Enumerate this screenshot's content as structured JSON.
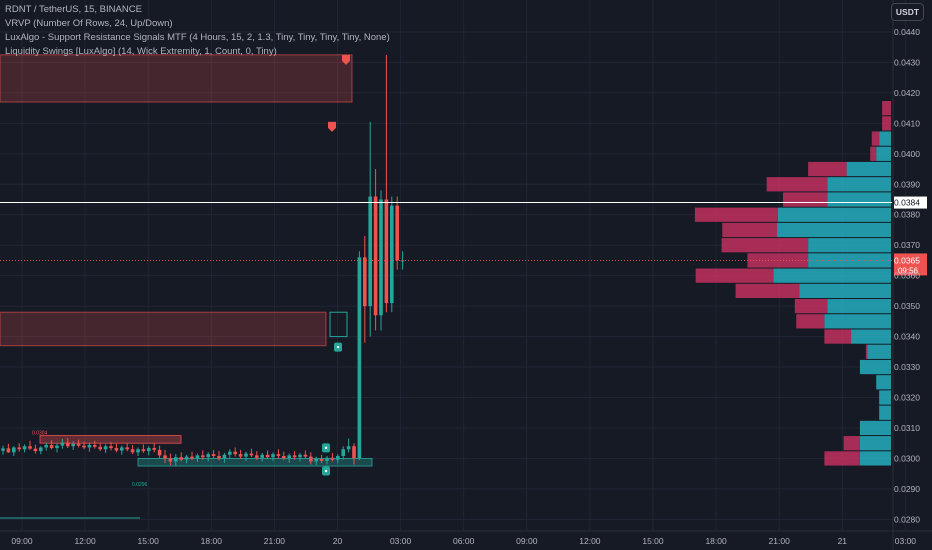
{
  "header": {
    "symbol_line": "RDNT / TetherUS, 15, BINANCE",
    "indicators": [
      "VRVP (Number Of Rows, 24, Up/Down)",
      "LuxAlgo - Support Resistance Signals MTF (4 Hours, 15, 2, 1.3, Tiny, Tiny, Tiny, Tiny, None)",
      "Liquidity Swings [LuxAlgo] (14, Wick Extremity, 1, Count, 0, Tiny)"
    ],
    "currency": "USDT"
  },
  "colors": {
    "background": "#161a25",
    "up": "#26a69a",
    "down": "#ef5350",
    "vp_up": "#24aebf",
    "vp_down": "#c2315f",
    "resistance_zone": "#ef5350",
    "support_zone": "#ef5350",
    "grid": "#222634"
  },
  "chart_data": {
    "type": "candlestick",
    "y_ticks": [
      "0.0280",
      "0.0290",
      "0.0300",
      "0.0310",
      "0.0320",
      "0.0330",
      "0.0340",
      "0.0350",
      "0.0360",
      "0.0370",
      "0.0380",
      "0.0390",
      "0.0400",
      "0.0410",
      "0.0420",
      "0.0430",
      "0.0440"
    ],
    "ylim": [
      0.02765,
      0.04505
    ],
    "x_ticks": [
      "09:00",
      "12:00",
      "15:00",
      "18:00",
      "21:00",
      "20",
      "03:00",
      "06:00",
      "09:00",
      "12:00",
      "15:00",
      "18:00",
      "21:00",
      "21",
      "03:00"
    ],
    "current_price": "0.0365",
    "countdown": "09:56",
    "crosshair_price": "0.0384",
    "zones": [
      {
        "kind": "resistance",
        "top": 0.04325,
        "bottom": 0.0417
      },
      {
        "kind": "resistance",
        "top": 0.0348,
        "bottom": 0.0337
      }
    ],
    "liquidity_labels": [
      {
        "text": "0.0304",
        "price": 0.03052
      },
      {
        "text": "0.0296",
        "price": 0.02968
      }
    ],
    "liquidity_zones": [
      {
        "kind": "high",
        "top": 0.03075,
        "bottom": 0.0305
      },
      {
        "kind": "low",
        "top": 0.03,
        "bottom": 0.02975
      }
    ],
    "signal_markers": [
      {
        "type": "resistance",
        "price": 0.04325
      },
      {
        "type": "resistance",
        "price": 0.04105
      },
      {
        "type": "support",
        "price": 0.034
      },
      {
        "type": "support-up",
        "price": 0.0301
      },
      {
        "type": "support",
        "price": 0.0298
      }
    ],
    "volume_profile": [
      {
        "price": 0.03,
        "up": 42,
        "down": 48
      },
      {
        "price": 0.0305,
        "up": 42,
        "down": 22
      },
      {
        "price": 0.031,
        "up": 42,
        "down": 0
      },
      {
        "price": 0.0315,
        "up": 16,
        "down": 0
      },
      {
        "price": 0.032,
        "up": 16,
        "down": 0
      },
      {
        "price": 0.0325,
        "up": 20,
        "down": 0
      },
      {
        "price": 0.033,
        "up": 42,
        "down": 0
      },
      {
        "price": 0.0335,
        "up": 32,
        "down": 2
      },
      {
        "price": 0.034,
        "up": 54,
        "down": 36
      },
      {
        "price": 0.0345,
        "up": 90,
        "down": 38
      },
      {
        "price": 0.035,
        "up": 86,
        "down": 44
      },
      {
        "price": 0.0355,
        "up": 124,
        "down": 86
      },
      {
        "price": 0.036,
        "up": 159,
        "down": 105
      },
      {
        "price": 0.0365,
        "up": 112,
        "down": 82
      },
      {
        "price": 0.037,
        "up": 112,
        "down": 117
      },
      {
        "price": 0.0375,
        "up": 154,
        "down": 74
      },
      {
        "price": 0.038,
        "up": 153,
        "down": 112
      },
      {
        "price": 0.0385,
        "up": 86,
        "down": 60
      },
      {
        "price": 0.039,
        "up": 86,
        "down": 82
      },
      {
        "price": 0.0395,
        "up": 60,
        "down": 52
      },
      {
        "price": 0.04,
        "up": 20,
        "down": 8
      },
      {
        "price": 0.0405,
        "up": 16,
        "down": 10
      },
      {
        "price": 0.041,
        "up": 0,
        "down": 12
      },
      {
        "price": 0.0415,
        "up": 0,
        "down": 12
      }
    ],
    "candles": [
      {
        "o": 0.03025,
        "h": 0.03042,
        "l": 0.03012,
        "c": 0.03033
      },
      {
        "o": 0.03033,
        "h": 0.03048,
        "l": 0.03018,
        "c": 0.0302
      },
      {
        "o": 0.0302,
        "h": 0.0304,
        "l": 0.03008,
        "c": 0.03036
      },
      {
        "o": 0.03036,
        "h": 0.0305,
        "l": 0.03022,
        "c": 0.0303
      },
      {
        "o": 0.0303,
        "h": 0.03046,
        "l": 0.0302,
        "c": 0.0304
      },
      {
        "o": 0.0304,
        "h": 0.03058,
        "l": 0.03028,
        "c": 0.03032
      },
      {
        "o": 0.03032,
        "h": 0.03045,
        "l": 0.03016,
        "c": 0.03024
      },
      {
        "o": 0.03024,
        "h": 0.0304,
        "l": 0.03014,
        "c": 0.03036
      },
      {
        "o": 0.03036,
        "h": 0.03052,
        "l": 0.03026,
        "c": 0.03044
      },
      {
        "o": 0.03044,
        "h": 0.0306,
        "l": 0.0303,
        "c": 0.03034
      },
      {
        "o": 0.03034,
        "h": 0.03048,
        "l": 0.0302,
        "c": 0.03042
      },
      {
        "o": 0.03042,
        "h": 0.03064,
        "l": 0.03032,
        "c": 0.03052
      },
      {
        "o": 0.03052,
        "h": 0.03066,
        "l": 0.03034,
        "c": 0.0304
      },
      {
        "o": 0.0304,
        "h": 0.03056,
        "l": 0.03028,
        "c": 0.03048
      },
      {
        "o": 0.03048,
        "h": 0.03062,
        "l": 0.03036,
        "c": 0.03042
      },
      {
        "o": 0.03042,
        "h": 0.03055,
        "l": 0.0303,
        "c": 0.03036
      },
      {
        "o": 0.03036,
        "h": 0.0305,
        "l": 0.03022,
        "c": 0.03044
      },
      {
        "o": 0.03044,
        "h": 0.03058,
        "l": 0.03032,
        "c": 0.03038
      },
      {
        "o": 0.03038,
        "h": 0.0305,
        "l": 0.03024,
        "c": 0.0303
      },
      {
        "o": 0.0303,
        "h": 0.03046,
        "l": 0.03018,
        "c": 0.0304
      },
      {
        "o": 0.0304,
        "h": 0.03054,
        "l": 0.03026,
        "c": 0.03034
      },
      {
        "o": 0.03034,
        "h": 0.03048,
        "l": 0.0302,
        "c": 0.03026
      },
      {
        "o": 0.03026,
        "h": 0.03042,
        "l": 0.03012,
        "c": 0.03036
      },
      {
        "o": 0.03036,
        "h": 0.0305,
        "l": 0.03024,
        "c": 0.0303
      },
      {
        "o": 0.0303,
        "h": 0.03044,
        "l": 0.03014,
        "c": 0.0302
      },
      {
        "o": 0.0302,
        "h": 0.03036,
        "l": 0.03008,
        "c": 0.0303
      },
      {
        "o": 0.0303,
        "h": 0.03046,
        "l": 0.03018,
        "c": 0.03024
      },
      {
        "o": 0.03024,
        "h": 0.0304,
        "l": 0.0301,
        "c": 0.03034
      },
      {
        "o": 0.03034,
        "h": 0.0305,
        "l": 0.0302,
        "c": 0.03028
      },
      {
        "o": 0.03028,
        "h": 0.03042,
        "l": 0.03,
        "c": 0.0301
      },
      {
        "o": 0.0301,
        "h": 0.03028,
        "l": 0.02985,
        "c": 0.03
      },
      {
        "o": 0.03,
        "h": 0.03016,
        "l": 0.02978,
        "c": 0.0299
      },
      {
        "o": 0.0299,
        "h": 0.03014,
        "l": 0.02976,
        "c": 0.03004
      },
      {
        "o": 0.03004,
        "h": 0.0302,
        "l": 0.0299,
        "c": 0.02996
      },
      {
        "o": 0.02996,
        "h": 0.03012,
        "l": 0.02984,
        "c": 0.03006
      },
      {
        "o": 0.03006,
        "h": 0.03022,
        "l": 0.02994,
        "c": 0.03
      },
      {
        "o": 0.03,
        "h": 0.03016,
        "l": 0.02988,
        "c": 0.0301
      },
      {
        "o": 0.0301,
        "h": 0.03026,
        "l": 0.02996,
        "c": 0.03004
      },
      {
        "o": 0.03004,
        "h": 0.0302,
        "l": 0.0299,
        "c": 0.03014
      },
      {
        "o": 0.03014,
        "h": 0.03028,
        "l": 0.03,
        "c": 0.03008
      },
      {
        "o": 0.03008,
        "h": 0.03024,
        "l": 0.02994,
        "c": 0.03
      },
      {
        "o": 0.03,
        "h": 0.03018,
        "l": 0.02986,
        "c": 0.03012
      },
      {
        "o": 0.03012,
        "h": 0.0303,
        "l": 0.03,
        "c": 0.03022
      },
      {
        "o": 0.03022,
        "h": 0.03036,
        "l": 0.03006,
        "c": 0.03014
      },
      {
        "o": 0.03014,
        "h": 0.03028,
        "l": 0.02998,
        "c": 0.03006
      },
      {
        "o": 0.03006,
        "h": 0.03022,
        "l": 0.02992,
        "c": 0.03016
      },
      {
        "o": 0.03016,
        "h": 0.03032,
        "l": 0.03004,
        "c": 0.0301
      },
      {
        "o": 0.0301,
        "h": 0.03024,
        "l": 0.02996,
        "c": 0.03002
      },
      {
        "o": 0.03002,
        "h": 0.03018,
        "l": 0.0299,
        "c": 0.03012
      },
      {
        "o": 0.03012,
        "h": 0.03026,
        "l": 0.02998,
        "c": 0.03004
      },
      {
        "o": 0.03004,
        "h": 0.0302,
        "l": 0.02992,
        "c": 0.03014
      },
      {
        "o": 0.03014,
        "h": 0.0303,
        "l": 0.03,
        "c": 0.03008
      },
      {
        "o": 0.03008,
        "h": 0.03022,
        "l": 0.02994,
        "c": 0.03
      },
      {
        "o": 0.03,
        "h": 0.03016,
        "l": 0.02986,
        "c": 0.0301
      },
      {
        "o": 0.0301,
        "h": 0.03024,
        "l": 0.02996,
        "c": 0.03004
      },
      {
        "o": 0.03004,
        "h": 0.03018,
        "l": 0.0299,
        "c": 0.03012
      },
      {
        "o": 0.03012,
        "h": 0.03026,
        "l": 0.02998,
        "c": 0.03006
      },
      {
        "o": 0.03006,
        "h": 0.0302,
        "l": 0.0298,
        "c": 0.0299
      },
      {
        "o": 0.0299,
        "h": 0.03006,
        "l": 0.02978,
        "c": 0.02998
      },
      {
        "o": 0.02998,
        "h": 0.03012,
        "l": 0.02984,
        "c": 0.02992
      },
      {
        "o": 0.02992,
        "h": 0.03008,
        "l": 0.0298,
        "c": 0.03002
      },
      {
        "o": 0.03002,
        "h": 0.03018,
        "l": 0.0299,
        "c": 0.02996
      },
      {
        "o": 0.02996,
        "h": 0.03014,
        "l": 0.02984,
        "c": 0.03008
      },
      {
        "o": 0.03008,
        "h": 0.0304,
        "l": 0.02996,
        "c": 0.0303
      },
      {
        "o": 0.0303,
        "h": 0.03065,
        "l": 0.0302,
        "c": 0.0304
      },
      {
        "o": 0.0304,
        "h": 0.0305,
        "l": 0.0298,
        "c": 0.03
      },
      {
        "o": 0.03,
        "h": 0.0368,
        "l": 0.02995,
        "c": 0.0366
      },
      {
        "o": 0.0366,
        "h": 0.0373,
        "l": 0.0338,
        "c": 0.035
      },
      {
        "o": 0.035,
        "h": 0.04105,
        "l": 0.034,
        "c": 0.0386
      },
      {
        "o": 0.0386,
        "h": 0.0395,
        "l": 0.0342,
        "c": 0.0347
      },
      {
        "o": 0.0347,
        "h": 0.0388,
        "l": 0.0342,
        "c": 0.0385
      },
      {
        "o": 0.0385,
        "h": 0.04325,
        "l": 0.0348,
        "c": 0.0351
      },
      {
        "o": 0.0351,
        "h": 0.0386,
        "l": 0.0348,
        "c": 0.0383
      },
      {
        "o": 0.0383,
        "h": 0.0386,
        "l": 0.0362,
        "c": 0.0365
      },
      {
        "o": 0.0365,
        "h": 0.0368,
        "l": 0.0362,
        "c": 0.0365
      }
    ]
  }
}
